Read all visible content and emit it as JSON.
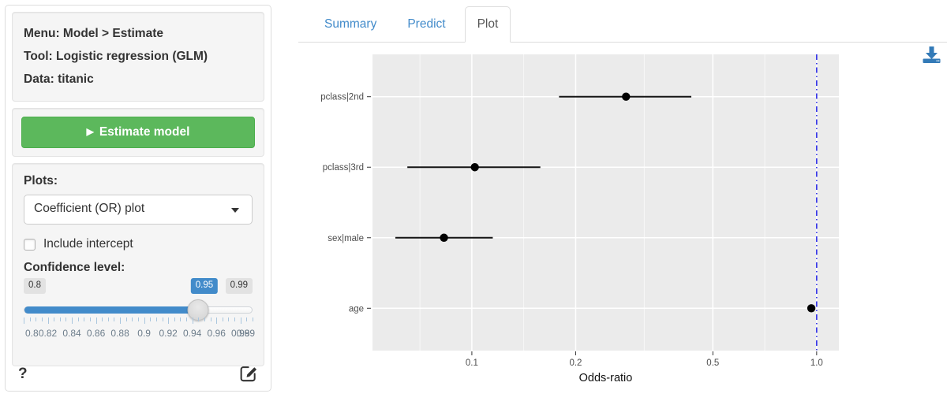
{
  "sidebar": {
    "info": [
      {
        "label": "Menu:",
        "value": "Model > Estimate"
      },
      {
        "label": "Tool:",
        "value": "Logistic regression (GLM)"
      },
      {
        "label": "Data:",
        "value": "titanic"
      }
    ],
    "estimate_button": {
      "icon": "play-icon",
      "label": "Estimate model"
    },
    "plots_label": "Plots:",
    "plot_type_select": {
      "value": "Coefficient (OR) plot"
    },
    "include_intercept": {
      "label": "Include intercept",
      "checked": false
    },
    "confidence": {
      "label": "Confidence level:",
      "min_label": "0.8",
      "max_label": "0.99",
      "value": "0.95",
      "range_min": 0.8,
      "range_max": 0.99,
      "current": 0.95,
      "tick_labels": [
        "0.8",
        "0.82",
        "0.84",
        "0.86",
        "0.88",
        "0.9",
        "0.92",
        "0.94",
        "0.96",
        "0.98",
        "0.99"
      ],
      "n_ticks": 39
    },
    "help_label": "?"
  },
  "tabs": [
    {
      "label": "Summary",
      "active": false
    },
    {
      "label": "Predict",
      "active": false
    },
    {
      "label": "Plot",
      "active": true
    }
  ],
  "colors": {
    "accent_blue": "#428bca",
    "link_blue": "#337ab7",
    "success_green": "#5cb85c",
    "panel_gray": "#ebebeb",
    "reference_blue": "#3a3ae8"
  },
  "chart_data": {
    "type": "scatter",
    "variant": "coefficient-odds-ratio-dot-plot-with-ci",
    "title": "",
    "xlabel": "Odds-ratio",
    "ylabel": "",
    "x_scale": "log10",
    "xlim": [
      0.0515,
      1.16
    ],
    "x_major_ticks": [
      0.1,
      0.2,
      0.5,
      1.0
    ],
    "x_tick_labels": [
      "0.1",
      "0.2",
      "0.5",
      "1.0"
    ],
    "x_minor_gridlines": [
      0.0707,
      0.1414,
      0.3162,
      0.7071
    ],
    "categories": [
      "pclass|2nd",
      "pclass|3rd",
      "sex|male",
      "age"
    ],
    "points": [
      {
        "label": "pclass|2nd",
        "or": 0.28,
        "ci_low": 0.179,
        "ci_high": 0.433
      },
      {
        "label": "pclass|3rd",
        "or": 0.102,
        "ci_low": 0.065,
        "ci_high": 0.158
      },
      {
        "label": "sex|male",
        "or": 0.083,
        "ci_low": 0.06,
        "ci_high": 0.115
      },
      {
        "label": "age",
        "or": 0.965,
        "ci_low": 0.955,
        "ci_high": 0.976
      }
    ],
    "reference_line": {
      "x": 1.0,
      "style": "dash-dot",
      "color": "#3a3ae8"
    },
    "panel_bg": "#ebebeb",
    "grid": true,
    "legend": false
  }
}
